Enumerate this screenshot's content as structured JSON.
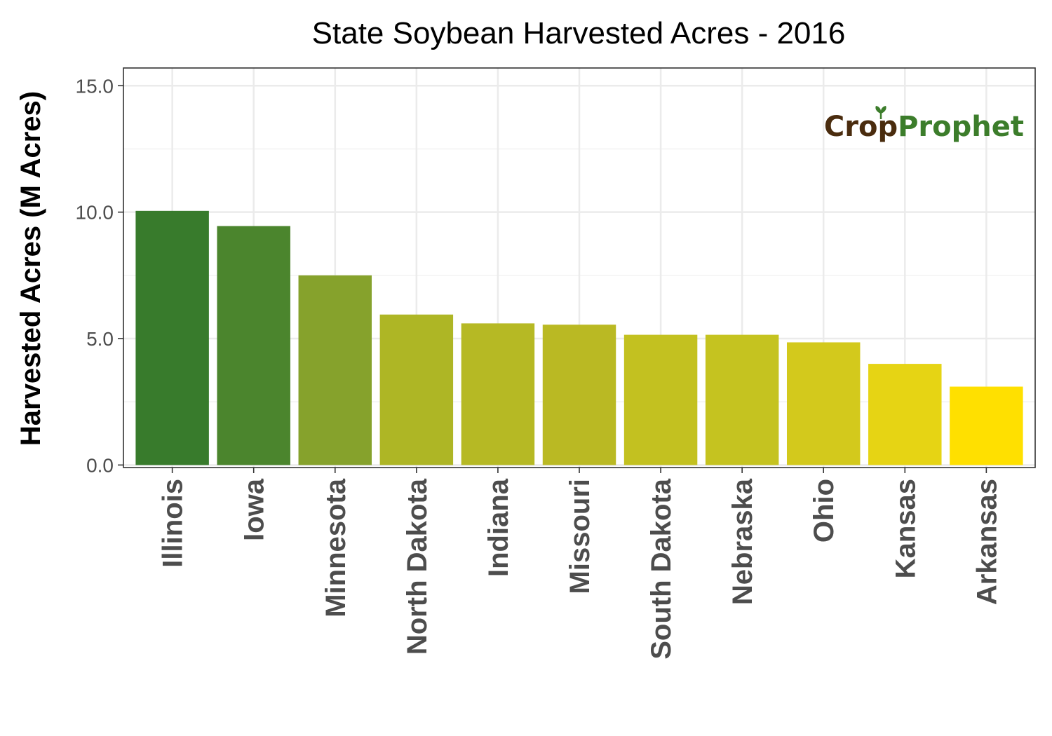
{
  "chart_data": {
    "type": "bar",
    "title": "State Soybean Harvested Acres - 2016",
    "xlabel": "",
    "ylabel": "Harvested Acres (M Acres)",
    "ylim": [
      -0.1,
      15.7
    ],
    "yticks": [
      0.0,
      5.0,
      10.0,
      15.0
    ],
    "ytick_labels": [
      "0.0",
      "5.0",
      "10.0",
      "15.0"
    ],
    "grid": true,
    "categories": [
      "Illinois",
      "Iowa",
      "Minnesota",
      "North Dakota",
      "Indiana",
      "Missouri",
      "South Dakota",
      "Nebraska",
      "Ohio",
      "Kansas",
      "Arkansas"
    ],
    "values": [
      10.05,
      9.45,
      7.5,
      5.95,
      5.6,
      5.55,
      5.15,
      5.15,
      4.85,
      4.0,
      3.1
    ],
    "colors": [
      "#387b2c",
      "#4b852d",
      "#86a22c",
      "#aeb625",
      "#b6b924",
      "#bab923",
      "#c3c120",
      "#c5c320",
      "#d3c91c",
      "#e6d414",
      "#ffe000"
    ]
  },
  "logo": {
    "part1": "Cr",
    "part2": "o",
    "part3": "p",
    "part4": "Prophet"
  }
}
